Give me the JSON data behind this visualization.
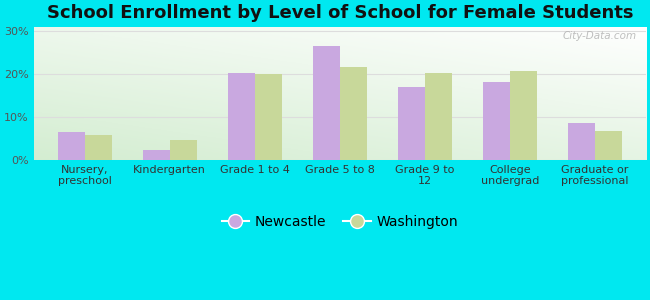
{
  "title": "School Enrollment by Level of School for Female Students",
  "categories": [
    "Nursery,\npreschool",
    "Kindergarten",
    "Grade 1 to 4",
    "Grade 5 to 8",
    "Grade 9 to\n12",
    "College\nundergrad",
    "Graduate or\nprofessional"
  ],
  "newcastle": [
    6.5,
    2.2,
    20.2,
    26.5,
    17.0,
    18.0,
    8.5
  ],
  "washington": [
    5.8,
    4.7,
    20.0,
    21.5,
    20.2,
    20.7,
    6.8
  ],
  "newcastle_color": "#c9a8e0",
  "washington_color": "#c8d89a",
  "background_outer": "#00e8f0",
  "background_inner_bottom": "#c8e6c0",
  "background_inner_top": "#f8fff8",
  "grid_color": "#dddddd",
  "ylabel_ticks": [
    "0%",
    "10%",
    "20%",
    "30%"
  ],
  "ytick_vals": [
    0,
    10,
    20,
    30
  ],
  "ylim": [
    0,
    31
  ],
  "bar_width": 0.32,
  "legend_newcastle": "Newcastle",
  "legend_washington": "Washington",
  "title_fontsize": 13,
  "tick_fontsize": 8,
  "legend_fontsize": 10,
  "watermark": "City-Data.com"
}
